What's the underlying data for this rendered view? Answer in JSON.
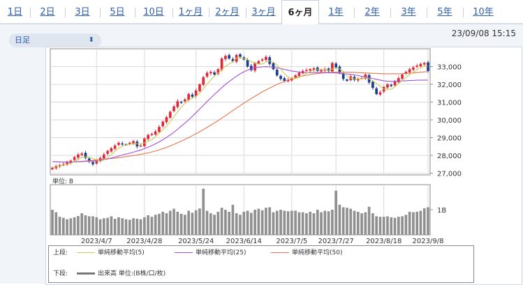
{
  "tabs": [
    {
      "label": "1日",
      "active": false
    },
    {
      "label": "2日",
      "active": false
    },
    {
      "label": "3日",
      "active": false
    },
    {
      "label": "5日",
      "active": false
    },
    {
      "label": "10日",
      "active": false
    },
    {
      "label": "1ヶ月",
      "active": false
    },
    {
      "label": "2ヶ月",
      "active": false
    },
    {
      "label": "3ヶ月",
      "active": false
    },
    {
      "label": "6ヶ月",
      "active": true
    },
    {
      "label": "1年",
      "active": false
    },
    {
      "label": "2年",
      "active": false
    },
    {
      "label": "3年",
      "active": false
    },
    {
      "label": "5年",
      "active": false
    },
    {
      "label": "10年",
      "active": false
    }
  ],
  "period_select": {
    "value": "日足",
    "icon": "chevron-updown-icon"
  },
  "timestamp": "23/09/08 15:15",
  "volume_unit_label": "単位: B",
  "volume_tick_label": "1B",
  "legend": {
    "upper_label": "上段:",
    "lower_label": "下段:",
    "ma": [
      {
        "name": "単純移動平均(5)",
        "color": "#c8cc50"
      },
      {
        "name": "単純移動平均(25)",
        "color": "#a24fd8"
      },
      {
        "name": "単純移動平均(50)",
        "color": "#e5764d"
      }
    ],
    "volume_name": "出来高 単位:(B株/口/枚)",
    "volume_color": "#777777"
  },
  "colors": {
    "up": "#e0283a",
    "down": "#1f3d8f",
    "volume": "#909090",
    "grid": "#d9d9d9"
  },
  "chart_data": {
    "type": "candlestick",
    "x_tick_labels": [
      "2023/4/7",
      "2023/4/28",
      "2023/5/24",
      "2023/6/14",
      "2023/7/5",
      "2023/7/27",
      "2023/8/18",
      "2023/9/8"
    ],
    "y_tick_labels": [
      "33,000",
      "32,000",
      "31,000",
      "30,000",
      "29,000",
      "28,000",
      "27,000"
    ],
    "ylim": [
      26900,
      34000
    ],
    "close": [
      27300,
      27400,
      27450,
      27500,
      27600,
      27700,
      27900,
      28050,
      28100,
      27850,
      27650,
      27500,
      27700,
      27850,
      28050,
      28250,
      28400,
      28550,
      28700,
      28650,
      28600,
      28700,
      28800,
      28500,
      28550,
      28950,
      29150,
      29200,
      29350,
      29600,
      29900,
      30150,
      30450,
      30750,
      31050,
      31000,
      31150,
      31450,
      31300,
      31650,
      32000,
      32400,
      32650,
      32700,
      32550,
      32850,
      33450,
      33600,
      33450,
      33300,
      33650,
      33550,
      33400,
      33000,
      32800,
      33200,
      33300,
      33400,
      33550,
      33150,
      32850,
      32500,
      32300,
      32200,
      32250,
      32350,
      32500,
      32650,
      32750,
      32800,
      32850,
      32900,
      32750,
      32800,
      32850,
      32750,
      33200,
      32950,
      32650,
      32300,
      32200,
      32450,
      32250,
      32300,
      32350,
      32550,
      32100,
      31800,
      31450,
      31550,
      31850,
      32000,
      31900,
      32150,
      32350,
      32550,
      32700,
      32850,
      32950,
      33050,
      33150,
      33200,
      32750
    ],
    "ma5": [
      27300,
      27350,
      27400,
      27450,
      27500,
      27550,
      27650,
      27760,
      27900,
      27910,
      27900,
      27830,
      27740,
      27660,
      27750,
      27870,
      28050,
      28230,
      28390,
      28510,
      28580,
      28630,
      28660,
      28650,
      28630,
      28700,
      28790,
      28880,
      29050,
      29250,
      29440,
      29640,
      29890,
      30170,
      30460,
      30710,
      30930,
      31120,
      31220,
      31330,
      31500,
      31760,
      32000,
      32230,
      32460,
      32630,
      32840,
      33010,
      33150,
      33270,
      33490,
      33500,
      33480,
      33390,
      33290,
      33190,
      33140,
      33140,
      33250,
      33320,
      33250,
      33070,
      32860,
      32600,
      32420,
      32320,
      32320,
      32400,
      32500,
      32610,
      32720,
      32810,
      32820,
      32820,
      32830,
      32790,
      32870,
      32900,
      32870,
      32730,
      32460,
      32350,
      32310,
      32300,
      32310,
      32380,
      32310,
      32190,
      32050,
      31890,
      31720,
      31730,
      31720,
      31860,
      32050,
      32210,
      32390,
      32540,
      32680,
      32810,
      32930,
      33030,
      33020
    ],
    "ma25": [
      27650,
      27640,
      27630,
      27620,
      27620,
      27620,
      27630,
      27640,
      27650,
      27660,
      27670,
      27680,
      27700,
      27720,
      27760,
      27800,
      27850,
      27900,
      27960,
      28020,
      28070,
      28120,
      28180,
      28240,
      28300,
      28380,
      28460,
      28550,
      28650,
      28760,
      28880,
      29010,
      29150,
      29300,
      29470,
      29640,
      29820,
      30000,
      30200,
      30400,
      30610,
      30820,
      31030,
      31230,
      31430,
      31620,
      31810,
      31990,
      32160,
      32310,
      32460,
      32590,
      32700,
      32800,
      32880,
      32930,
      32960,
      32980,
      32990,
      32980,
      32960,
      32930,
      32890,
      32840,
      32790,
      32750,
      32720,
      32690,
      32670,
      32660,
      32660,
      32660,
      32660,
      32660,
      32660,
      32650,
      32650,
      32640,
      32620,
      32600,
      32580,
      32560,
      32530,
      32490,
      32450,
      32420,
      32380,
      32330,
      32280,
      32240,
      32200,
      32180,
      32170,
      32170,
      32180,
      32190,
      32200,
      32210,
      32220,
      32230,
      32230,
      32240,
      32240
    ],
    "ma50": [
      27640,
      27640,
      27630,
      27630,
      27630,
      27630,
      27640,
      27650,
      27660,
      27680,
      27700,
      27720,
      27740,
      27760,
      27780,
      27800,
      27820,
      27840,
      27870,
      27900,
      27930,
      27960,
      27990,
      28020,
      28060,
      28100,
      28140,
      28190,
      28250,
      28310,
      28380,
      28450,
      28530,
      28620,
      28710,
      28800,
      28900,
      29000,
      29110,
      29220,
      29330,
      29450,
      29570,
      29700,
      29830,
      29960,
      30100,
      30240,
      30380,
      30520,
      30660,
      30800,
      30940,
      31070,
      31200,
      31330,
      31450,
      31570,
      31680,
      31790,
      31890,
      31990,
      32080,
      32160,
      32240,
      32310,
      32370,
      32420,
      32470,
      32510,
      32550,
      32580,
      32610,
      32630,
      32650,
      32660,
      32670,
      32680,
      32680,
      32680,
      32680,
      32680,
      32670,
      32660,
      32650,
      32640,
      32630,
      32620,
      32610,
      32600,
      32590,
      32590,
      32590,
      32590,
      32590,
      32600,
      32610,
      32620,
      32640,
      32660,
      32680,
      32700,
      32710
    ],
    "volume_relative": [
      1.0,
      0.9,
      0.72,
      0.68,
      0.62,
      0.66,
      0.7,
      0.75,
      0.86,
      0.78,
      0.74,
      0.74,
      0.7,
      0.62,
      0.66,
      0.68,
      0.74,
      0.64,
      0.7,
      0.66,
      0.62,
      0.6,
      0.66,
      0.64,
      0.62,
      0.7,
      0.78,
      0.72,
      0.8,
      0.84,
      0.92,
      0.86,
      0.96,
      1.04,
      0.92,
      0.84,
      0.8,
      0.96,
      0.88,
      0.98,
      1.05,
      1.84,
      0.96,
      0.86,
      0.8,
      0.92,
      1.08,
      1.0,
      0.92,
      1.2,
      0.86,
      0.8,
      0.92,
      0.96,
      0.88,
      1.0,
      1.04,
      0.98,
      1.08,
      1.1,
      0.9,
      0.96,
      1.0,
      0.96,
      0.94,
      0.96,
      0.96,
      0.9,
      0.9,
      0.86,
      0.92,
      0.86,
      1.0,
      0.9,
      0.96,
      0.94,
      1.0,
      1.76,
      1.2,
      1.1,
      1.08,
      1.04,
      0.96,
      0.92,
      0.86,
      0.9,
      1.12,
      0.86,
      0.74,
      0.72,
      0.72,
      0.74,
      0.7,
      0.68,
      0.72,
      0.74,
      0.8,
      0.92,
      0.9,
      0.92,
      0.96,
      1.06,
      1.1
    ]
  }
}
